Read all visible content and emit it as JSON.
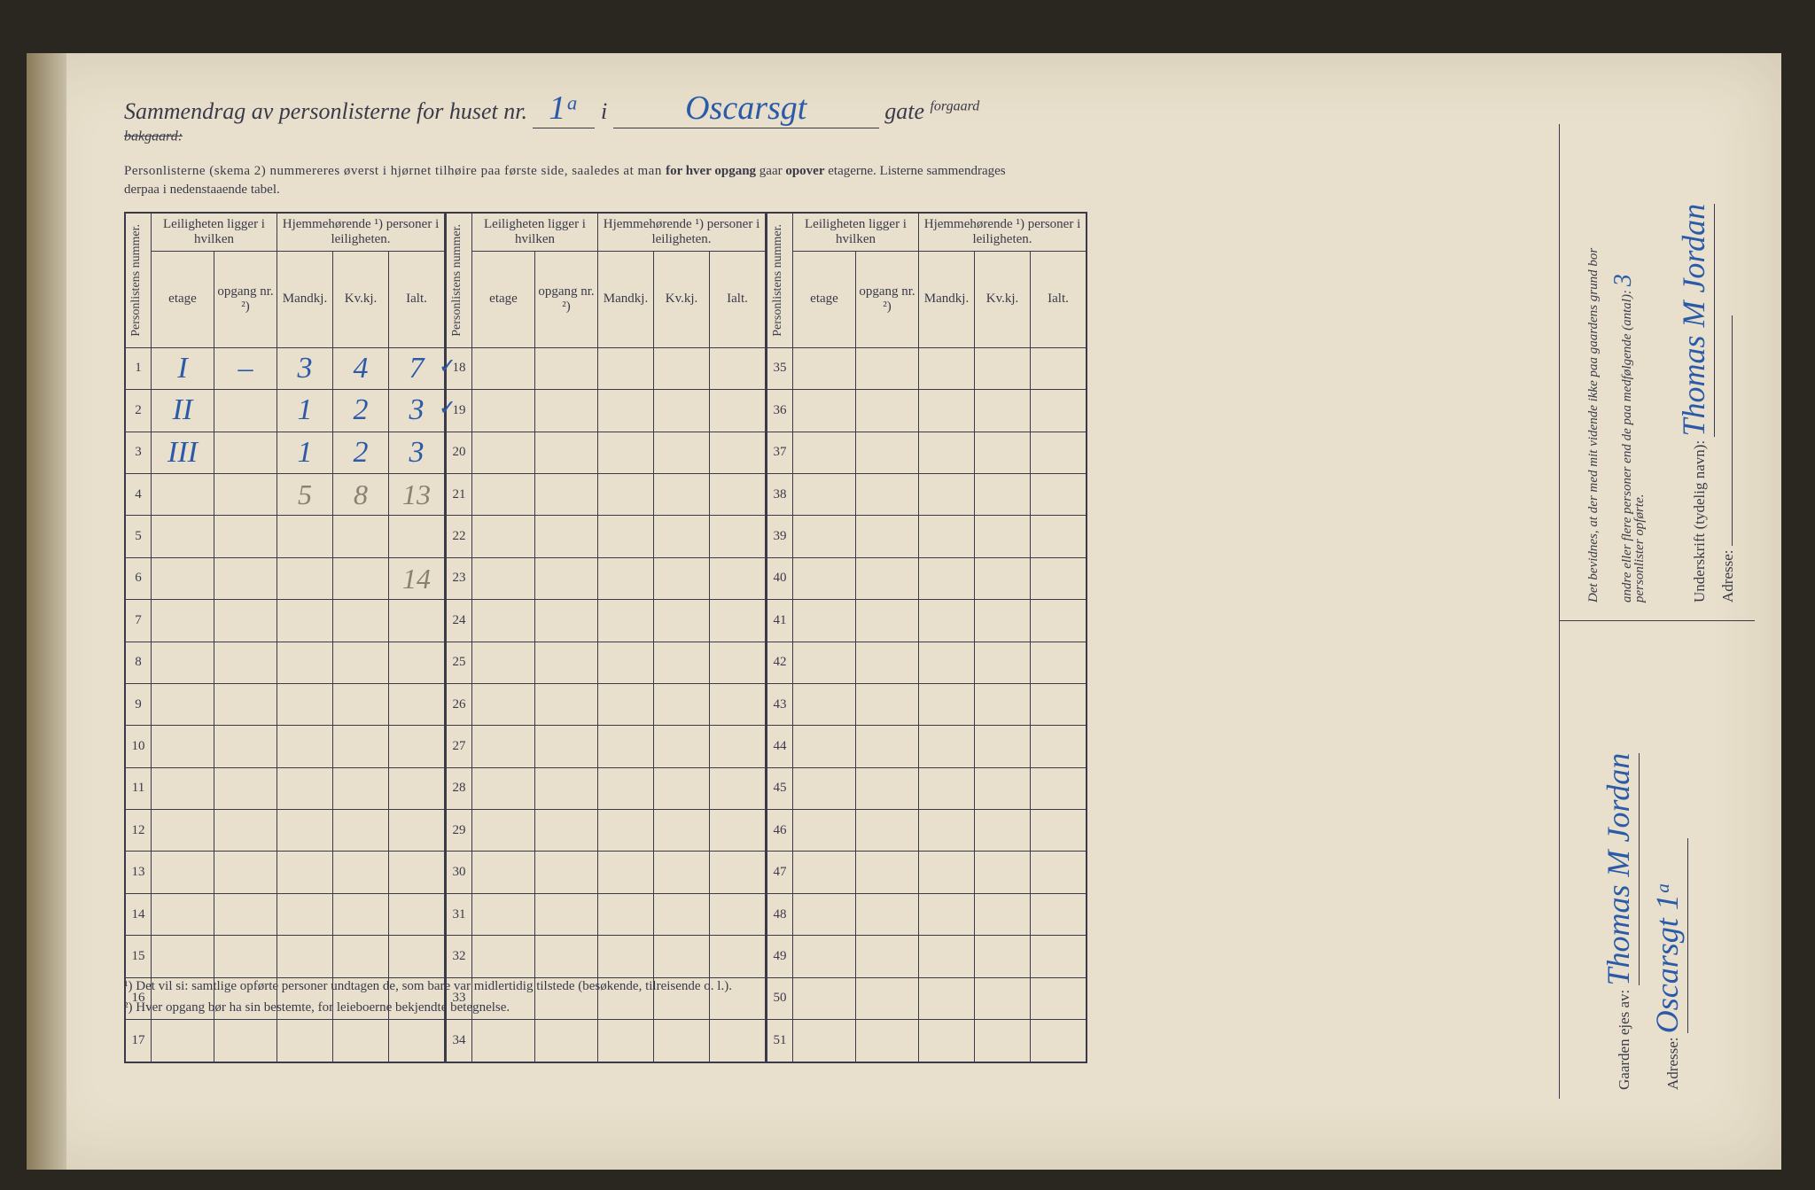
{
  "title": {
    "prefix": "Sammendrag av personlisterne for huset nr.",
    "house_nr": "1ᵃ",
    "i": "i",
    "street": "Oscarsgt",
    "gate": "gate",
    "forgaard": "forgaard",
    "bakgaard": "bakgaard:"
  },
  "subtitle": {
    "line1": "Personlisterne (skema 2) nummereres øverst i hjørnet tilhøire paa første side, saaledes at man ",
    "line1b": "for hver opgang",
    "line1c": " gaar ",
    "line1d": "opover",
    "line1e": " etagerne.   Listerne sammendrages",
    "line2": "derpaa i nedenstaaende tabel."
  },
  "headers": {
    "personlistens": "Personlistens\nnummer.",
    "leil": "Leiligheten\nligger i hvilken",
    "hjem": "Hjemmehørende ¹)\npersoner i leiligheten.",
    "etage": "etage",
    "opgang": "opgang\nnr. ²)",
    "mandkj": "Mandkj.",
    "kvkj": "Kv.kj.",
    "ialt": "Ialt."
  },
  "rows": {
    "block1": [
      1,
      2,
      3,
      4,
      5,
      6,
      7,
      8,
      9,
      10,
      11,
      12,
      13,
      14,
      15,
      16,
      17
    ],
    "block2": [
      18,
      19,
      20,
      21,
      22,
      23,
      24,
      25,
      26,
      27,
      28,
      29,
      30,
      31,
      32,
      33,
      34
    ],
    "block3": [
      35,
      36,
      37,
      38,
      39,
      40,
      41,
      42,
      43,
      44,
      45,
      46,
      47,
      48,
      49,
      50,
      51
    ]
  },
  "data": {
    "r1": {
      "etage": "I",
      "opgang": "–",
      "m": "3",
      "k": "4",
      "i": "7",
      "check": "✓"
    },
    "r2": {
      "etage": "II",
      "opgang": "",
      "m": "1",
      "k": "2",
      "i": "3",
      "check": "✓"
    },
    "r3": {
      "etage": "III",
      "opgang": "",
      "m": "1",
      "k": "2",
      "i": "3",
      "check": ""
    },
    "sum": {
      "m": "5",
      "k": "8",
      "i": "13"
    },
    "extra": {
      "i": "14"
    }
  },
  "footnotes": {
    "f1": "¹) Det vil si: samtlige opførte personer undtagen de, som bare var midlertidig tilstede (besøkende, tilreisende o. l.).",
    "f2": "²) Hver opgang bør ha sin bestemte, for leieboerne bekjendte betegnelse."
  },
  "side": {
    "gaarden": "Gaarden ejes av:",
    "owner": "Thomas M Jordan",
    "adresse": "Adresse:",
    "addr_val": "Oscarsgt 1ᵃ",
    "bevidnes": "Det bevidnes, at der med mit vidende ikke paa gaardens grund bor",
    "andre": "andre eller flere personer end de paa medfølgende (antal):",
    "antal": "3",
    "personlister": "personlister opførte.",
    "underskrift": "Underskrift (tydelig navn):",
    "sig": "Thomas M Jordan"
  },
  "colors": {
    "ink": "#2a5aa8",
    "pencil": "#888070",
    "paper": "#e8e0cc",
    "rule": "#3a3a4a"
  }
}
